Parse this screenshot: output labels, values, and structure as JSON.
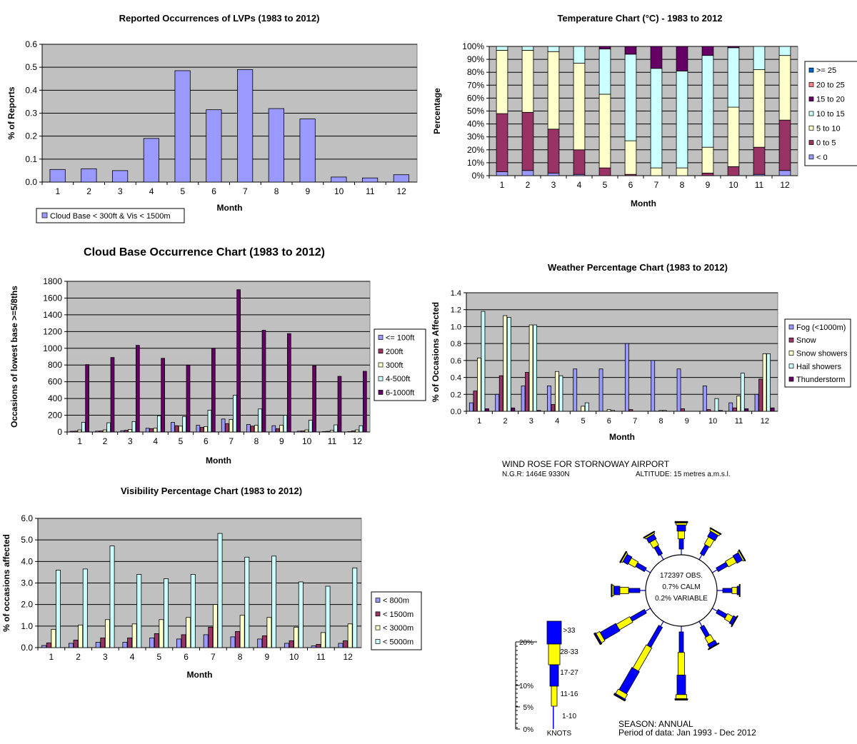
{
  "chart_data": [
    {
      "id": "lvp",
      "type": "bar",
      "title": "Reported Occurrences of LVPs (1983 to 2012)",
      "xlabel": "Month",
      "ylabel": "% of Reports",
      "ylim": [
        0,
        0.6
      ],
      "yticks": [
        "0.0",
        "0.1",
        "0.2",
        "0.3",
        "0.4",
        "0.5",
        "0.6"
      ],
      "categories": [
        "1",
        "2",
        "3",
        "4",
        "5",
        "6",
        "7",
        "8",
        "9",
        "10",
        "11",
        "12"
      ],
      "series": [
        {
          "name": "Cloud Base < 300ft & Vis < 1500m",
          "color": "#9999ff",
          "values": [
            0.055,
            0.058,
            0.05,
            0.19,
            0.485,
            0.315,
            0.49,
            0.32,
            0.275,
            0.022,
            0.018,
            0.032
          ]
        }
      ],
      "grid": true,
      "legend": "bottom-left"
    },
    {
      "id": "temp",
      "type": "bar",
      "stacked": true,
      "title": "Temperature Chart (°C) - 1983 to 2012",
      "xlabel": "Month",
      "ylabel": "Percentage",
      "ylim": [
        0,
        100
      ],
      "yticks": [
        "0%",
        "10%",
        "20%",
        "30%",
        "40%",
        "50%",
        "60%",
        "70%",
        "80%",
        "90%",
        "100%"
      ],
      "categories": [
        "1",
        "2",
        "3",
        "4",
        "5",
        "6",
        "7",
        "8",
        "9",
        "10",
        "11",
        "12"
      ],
      "series": [
        {
          "name": "< 0",
          "color": "#9999ff",
          "values": [
            3,
            4,
            2,
            1,
            0,
            0,
            0,
            0,
            0,
            0,
            1,
            4
          ]
        },
        {
          "name": "0 to 5",
          "color": "#993366",
          "values": [
            45,
            45,
            34,
            19,
            6,
            1,
            0,
            0,
            2,
            7,
            21,
            39
          ]
        },
        {
          "name": "5 to 10",
          "color": "#ffffcc",
          "values": [
            49,
            48,
            60,
            67,
            57,
            26,
            6,
            6,
            20,
            46,
            60,
            50
          ]
        },
        {
          "name": "10 to 15",
          "color": "#ccffff",
          "values": [
            3,
            3,
            4,
            13,
            35,
            67,
            77,
            75,
            71,
            46,
            18,
            7
          ]
        },
        {
          "name": "15 to 20",
          "color": "#660066",
          "values": [
            0,
            0,
            0,
            0,
            2,
            6,
            17,
            19,
            7,
            1,
            0,
            0
          ]
        },
        {
          "name": "20 to 25",
          "color": "#ff8080",
          "values": [
            0,
            0,
            0,
            0,
            0,
            0,
            0,
            0,
            0,
            0,
            0,
            0
          ]
        },
        {
          "name": ">= 25",
          "color": "#0066cc",
          "values": [
            0,
            0,
            0,
            0,
            0,
            0,
            0,
            0,
            0,
            0,
            0,
            0
          ]
        }
      ],
      "legend_order": [
        ">= 25",
        "20 to 25",
        "15 to 20",
        "10 to 15",
        "5 to 10",
        "0 to 5",
        "< 0"
      ],
      "grid": true,
      "legend": "right"
    },
    {
      "id": "cloud",
      "type": "bar",
      "title": "Cloud Base Occurrence Chart (1983 to 2012)",
      "xlabel": "Month",
      "ylabel": "Occasions of lowest base >=5/8ths",
      "ylim": [
        0,
        1800
      ],
      "yticks": [
        "0",
        "200",
        "400",
        "600",
        "800",
        "1000",
        "1200",
        "1400",
        "1600",
        "1800"
      ],
      "categories": [
        "1",
        "2",
        "3",
        "4",
        "5",
        "6",
        "7",
        "8",
        "9",
        "10",
        "11",
        "12"
      ],
      "series": [
        {
          "name": "<= 100ft",
          "color": "#9999ff",
          "values": [
            8,
            10,
            15,
            45,
            115,
            80,
            155,
            90,
            75,
            10,
            5,
            5
          ]
        },
        {
          "name": "200ft",
          "color": "#993366",
          "values": [
            10,
            12,
            20,
            40,
            75,
            55,
            100,
            70,
            40,
            12,
            8,
            12
          ]
        },
        {
          "name": "300ft",
          "color": "#ffffcc",
          "values": [
            25,
            25,
            30,
            45,
            70,
            65,
            150,
            80,
            80,
            25,
            20,
            25
          ]
        },
        {
          "name": "4-500ft",
          "color": "#ccffff",
          "values": [
            115,
            110,
            125,
            195,
            185,
            260,
            440,
            275,
            200,
            140,
            85,
            75
          ]
        },
        {
          "name": "6-1000ft",
          "color": "#660066",
          "values": [
            805,
            890,
            1035,
            880,
            800,
            1000,
            1700,
            1215,
            1175,
            790,
            665,
            725
          ]
        }
      ],
      "grid": true,
      "legend": "right"
    },
    {
      "id": "weather",
      "type": "bar",
      "title": "Weather Percentage Chart (1983 to 2012)",
      "xlabel": "Month",
      "ylabel": "% of Occasions Affected",
      "ylim": [
        0,
        1.4
      ],
      "yticks": [
        "0.0",
        "0.2",
        "0.4",
        "0.6",
        "0.8",
        "1.0",
        "1.2",
        "1.4"
      ],
      "categories": [
        "1",
        "2",
        "3",
        "4",
        "5",
        "6",
        "7",
        "8",
        "9",
        "10",
        "11",
        "12"
      ],
      "series": [
        {
          "name": "Fog (<1000m)",
          "color": "#9999ff",
          "values": [
            0.1,
            0.2,
            0.3,
            0.3,
            0.5,
            0.5,
            0.8,
            0.6,
            0.5,
            0.3,
            0.1,
            0.2
          ]
        },
        {
          "name": "Snow",
          "color": "#993366",
          "values": [
            0.24,
            0.42,
            0.46,
            0.08,
            0.0,
            0.0,
            0.02,
            0.0,
            0.03,
            0.02,
            0.04,
            0.38
          ]
        },
        {
          "name": "Snow showers",
          "color": "#ffffcc",
          "values": [
            0.63,
            1.13,
            1.02,
            0.47,
            0.06,
            0.02,
            0.0,
            0.01,
            0.0,
            0.0,
            0.18,
            0.68
          ]
        },
        {
          "name": "Hail showers",
          "color": "#ccffff",
          "values": [
            1.18,
            1.11,
            1.02,
            0.42,
            0.1,
            0.01,
            0.0,
            0.01,
            0.0,
            0.15,
            0.45,
            0.68
          ]
        },
        {
          "name": "Thunderstorm",
          "color": "#660066",
          "values": [
            0.03,
            0.04,
            0.01,
            0.0,
            0.0,
            0.0,
            0.0,
            0.0,
            0.0,
            0.01,
            0.03,
            0.04
          ]
        }
      ],
      "grid": true,
      "legend": "right"
    },
    {
      "id": "vis",
      "type": "bar",
      "title": "Visibility Percentage Chart (1983 to 2012)",
      "xlabel": "Month",
      "ylabel": "% of occasions affected",
      "ylim": [
        0,
        6
      ],
      "yticks": [
        "0.0",
        "1.0",
        "2.0",
        "3.0",
        "4.0",
        "5.0",
        "6.0"
      ],
      "categories": [
        "1",
        "2",
        "3",
        "4",
        "5",
        "6",
        "7",
        "8",
        "9",
        "10",
        "11",
        "12"
      ],
      "series": [
        {
          "name": "< 800m",
          "color": "#9999ff",
          "values": [
            0.1,
            0.2,
            0.25,
            0.25,
            0.45,
            0.4,
            0.6,
            0.5,
            0.4,
            0.2,
            0.08,
            0.2
          ]
        },
        {
          "name": "< 1500m",
          "color": "#993366",
          "values": [
            0.22,
            0.35,
            0.45,
            0.45,
            0.65,
            0.6,
            0.95,
            0.75,
            0.55,
            0.32,
            0.15,
            0.32
          ]
        },
        {
          "name": "< 3000m",
          "color": "#ffffcc",
          "values": [
            0.85,
            1.05,
            1.3,
            1.1,
            1.3,
            1.4,
            2.0,
            1.5,
            1.4,
            0.95,
            0.7,
            1.1
          ]
        },
        {
          "name": "< 5000m",
          "color": "#ccffff",
          "values": [
            3.6,
            3.65,
            4.72,
            3.4,
            3.2,
            3.4,
            5.3,
            4.2,
            4.25,
            3.05,
            2.85,
            3.7
          ]
        }
      ],
      "grid": true,
      "legend": "right"
    },
    {
      "id": "windrose",
      "type": "windrose",
      "title": "WIND ROSE FOR STORNOWAY AIRPORT",
      "ngr": "N.G.R: 1464E 9330N",
      "altitude": "ALTITUDE:   15 metres a.m.s.l.",
      "center_lines": [
        "172397 OBS.",
        "0.7% CALM",
        "0.2% VARIABLE"
      ],
      "season": "SEASON: ANNUAL",
      "period": "Period of data: Jan 1993 - Dec 2012",
      "directions_deg": [
        0,
        30,
        60,
        90,
        120,
        150,
        180,
        210,
        240,
        270,
        300,
        330
      ],
      "speed_bands": [
        "1-10",
        "11-16",
        "17-27",
        "28-33",
        ">33"
      ],
      "band_colors": [
        "#0000ff",
        "#ffff00",
        "#0000ff",
        "#ffff00",
        "#0000ff"
      ],
      "percentages": [
        [
          2.0,
          1.5,
          1.2,
          0.4,
          0.2
        ],
        [
          2.0,
          1.6,
          1.2,
          0.4,
          0.1
        ],
        [
          2.2,
          1.8,
          1.2,
          0.3,
          0.1
        ],
        [
          1.8,
          1.0,
          0.5,
          0.0,
          0.0
        ],
        [
          2.0,
          1.2,
          0.6,
          0.1,
          0.0
        ],
        [
          2.2,
          1.4,
          0.8,
          0.1,
          0.0
        ],
        [
          4.0,
          4.4,
          3.8,
          0.8,
          0.2
        ],
        [
          4.5,
          5.2,
          5.0,
          1.0,
          0.3
        ],
        [
          3.2,
          3.0,
          3.5,
          0.8,
          0.3
        ],
        [
          2.2,
          1.7,
          1.2,
          0.3,
          0.1
        ],
        [
          2.0,
          1.5,
          1.1,
          0.3,
          0.1
        ],
        [
          1.8,
          1.3,
          1.0,
          0.3,
          0.1
        ]
      ],
      "scale_labels": [
        "0%",
        "5%",
        "10%",
        "20%"
      ],
      "scale_unit": "KNOTS"
    }
  ]
}
